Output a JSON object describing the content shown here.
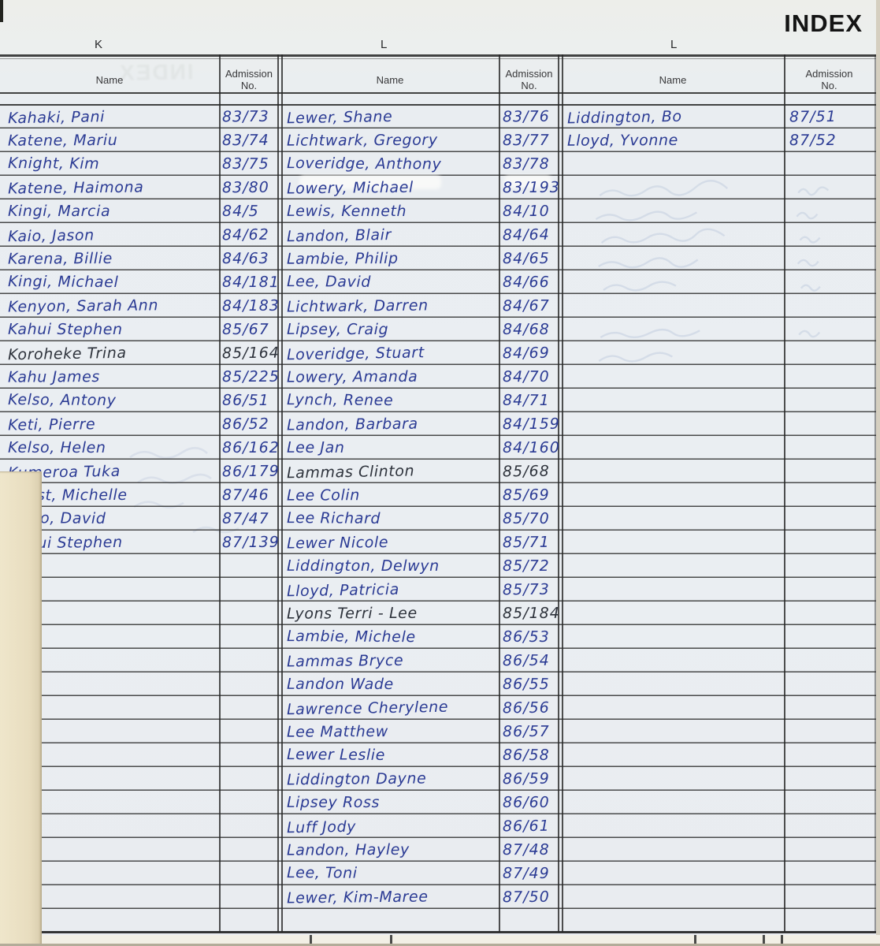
{
  "page": {
    "title": "INDEX",
    "section_letters": [
      "K",
      "L",
      "L"
    ],
    "header": {
      "name_label": "Name",
      "admission_label": "Admission\nNo."
    }
  },
  "colors": {
    "ink_blue": "#2b3b94",
    "ink_black": "#2e333c",
    "paper": "#e9edf1",
    "line": "#262626",
    "underlay": "#e8ddbf"
  },
  "columns": [
    {
      "letter": "K",
      "entries": [
        {
          "name": "Kahaki,  Pani",
          "no": "83/73"
        },
        {
          "name": "Katene,   Mariu",
          "no": "83/74"
        },
        {
          "name": "Knight,  Kim",
          "no": "83/75"
        },
        {
          "name": "Katene,  Haimona",
          "no": "83/80"
        },
        {
          "name": "Kingi,   Marcia",
          "no": "84/5"
        },
        {
          "name": "Kaio,  Jason",
          "no": "84/62"
        },
        {
          "name": "Karena,  Billie",
          "no": "84/63"
        },
        {
          "name": "Kingi,  Michael",
          "no": "84/181"
        },
        {
          "name": "Kenyon, Sarah Ann",
          "no": "84/183"
        },
        {
          "name": "Kahui Stephen",
          "no": "85/67"
        },
        {
          "name": "Koroheke Trina",
          "no": "85/164",
          "ink": "black"
        },
        {
          "name": "Kahu   James",
          "no": "85/225"
        },
        {
          "name": "Kelso,  Antony",
          "no": "86/51"
        },
        {
          "name": "Keti,  Pierre",
          "no": "86/52"
        },
        {
          "name": "Kelso,  Helen",
          "no": "86/162"
        },
        {
          "name": "Kumeroa Tuka",
          "no": "86/179"
        },
        {
          "name": "Keast, Michelle",
          "no": "87/46"
        },
        {
          "name": "Kelso, David",
          "no": "87/47"
        },
        {
          "name": "Kahui  Stephen",
          "no": "87/139"
        }
      ]
    },
    {
      "letter": "L",
      "entries": [
        {
          "name": "Lewer,   Shane",
          "no": "83/76"
        },
        {
          "name": "Lichtwark,  Gregory",
          "no": "83/77"
        },
        {
          "name": "Loveridge,  Anthony",
          "no": "83/78"
        },
        {
          "name": "Lowery,   Michael",
          "no": "83/193"
        },
        {
          "name": "Lewis,  Kenneth",
          "no": "84/10"
        },
        {
          "name": "Landon,  Blair",
          "no": "84/64"
        },
        {
          "name": "Lambie,  Philip",
          "no": "84/65"
        },
        {
          "name": "Lee,  David",
          "no": "84/66"
        },
        {
          "name": "Lichtwark,  Darren",
          "no": "84/67"
        },
        {
          "name": "Lipsey, Craig",
          "no": "84/68"
        },
        {
          "name": "Loveridge,  Stuart",
          "no": "84/69"
        },
        {
          "name": "Lowery,  Amanda",
          "no": "84/70"
        },
        {
          "name": "Lynch,  Renee",
          "no": "84/71"
        },
        {
          "name": "Landon, Barbara",
          "no": "84/159"
        },
        {
          "name": "Lee   Jan",
          "no": "84/160"
        },
        {
          "name": "Lammas Clinton",
          "no": "85/68",
          "ink": "black"
        },
        {
          "name": "Lee Colin",
          "no": "85/69"
        },
        {
          "name": "Lee Richard",
          "no": "85/70"
        },
        {
          "name": "Lewer Nicole",
          "no": "85/71"
        },
        {
          "name": "Liddington, Delwyn",
          "no": "85/72"
        },
        {
          "name": "Lloyd, Patricia",
          "no": "85/73"
        },
        {
          "name": "Lyons Terri - Lee",
          "no": "85/184",
          "ink": "black"
        },
        {
          "name": "Lambie, Michele",
          "no": "86/53"
        },
        {
          "name": "Lammas  Bryce",
          "no": "86/54"
        },
        {
          "name": "Landon  Wade",
          "no": "86/55"
        },
        {
          "name": "Lawrence Cherylene",
          "no": "86/56"
        },
        {
          "name": "Lee   Matthew",
          "no": "86/57"
        },
        {
          "name": "Lewer  Leslie",
          "no": "86/58"
        },
        {
          "name": "Liddington  Dayne",
          "no": "86/59"
        },
        {
          "name": "Lipsey   Ross",
          "no": "86/60"
        },
        {
          "name": "Luff  Jody",
          "no": "86/61"
        },
        {
          "name": "Landon,  Hayley",
          "no": "87/48"
        },
        {
          "name": "Lee,  Toni",
          "no": "87/49"
        },
        {
          "name": "Lewer,  Kim-Maree",
          "no": "87/50"
        }
      ]
    },
    {
      "letter": "L",
      "entries": [
        {
          "name": "Liddington,   Bo",
          "no": "87/51"
        },
        {
          "name": "Lloyd,  Yvonne",
          "no": "87/52"
        }
      ]
    }
  ]
}
